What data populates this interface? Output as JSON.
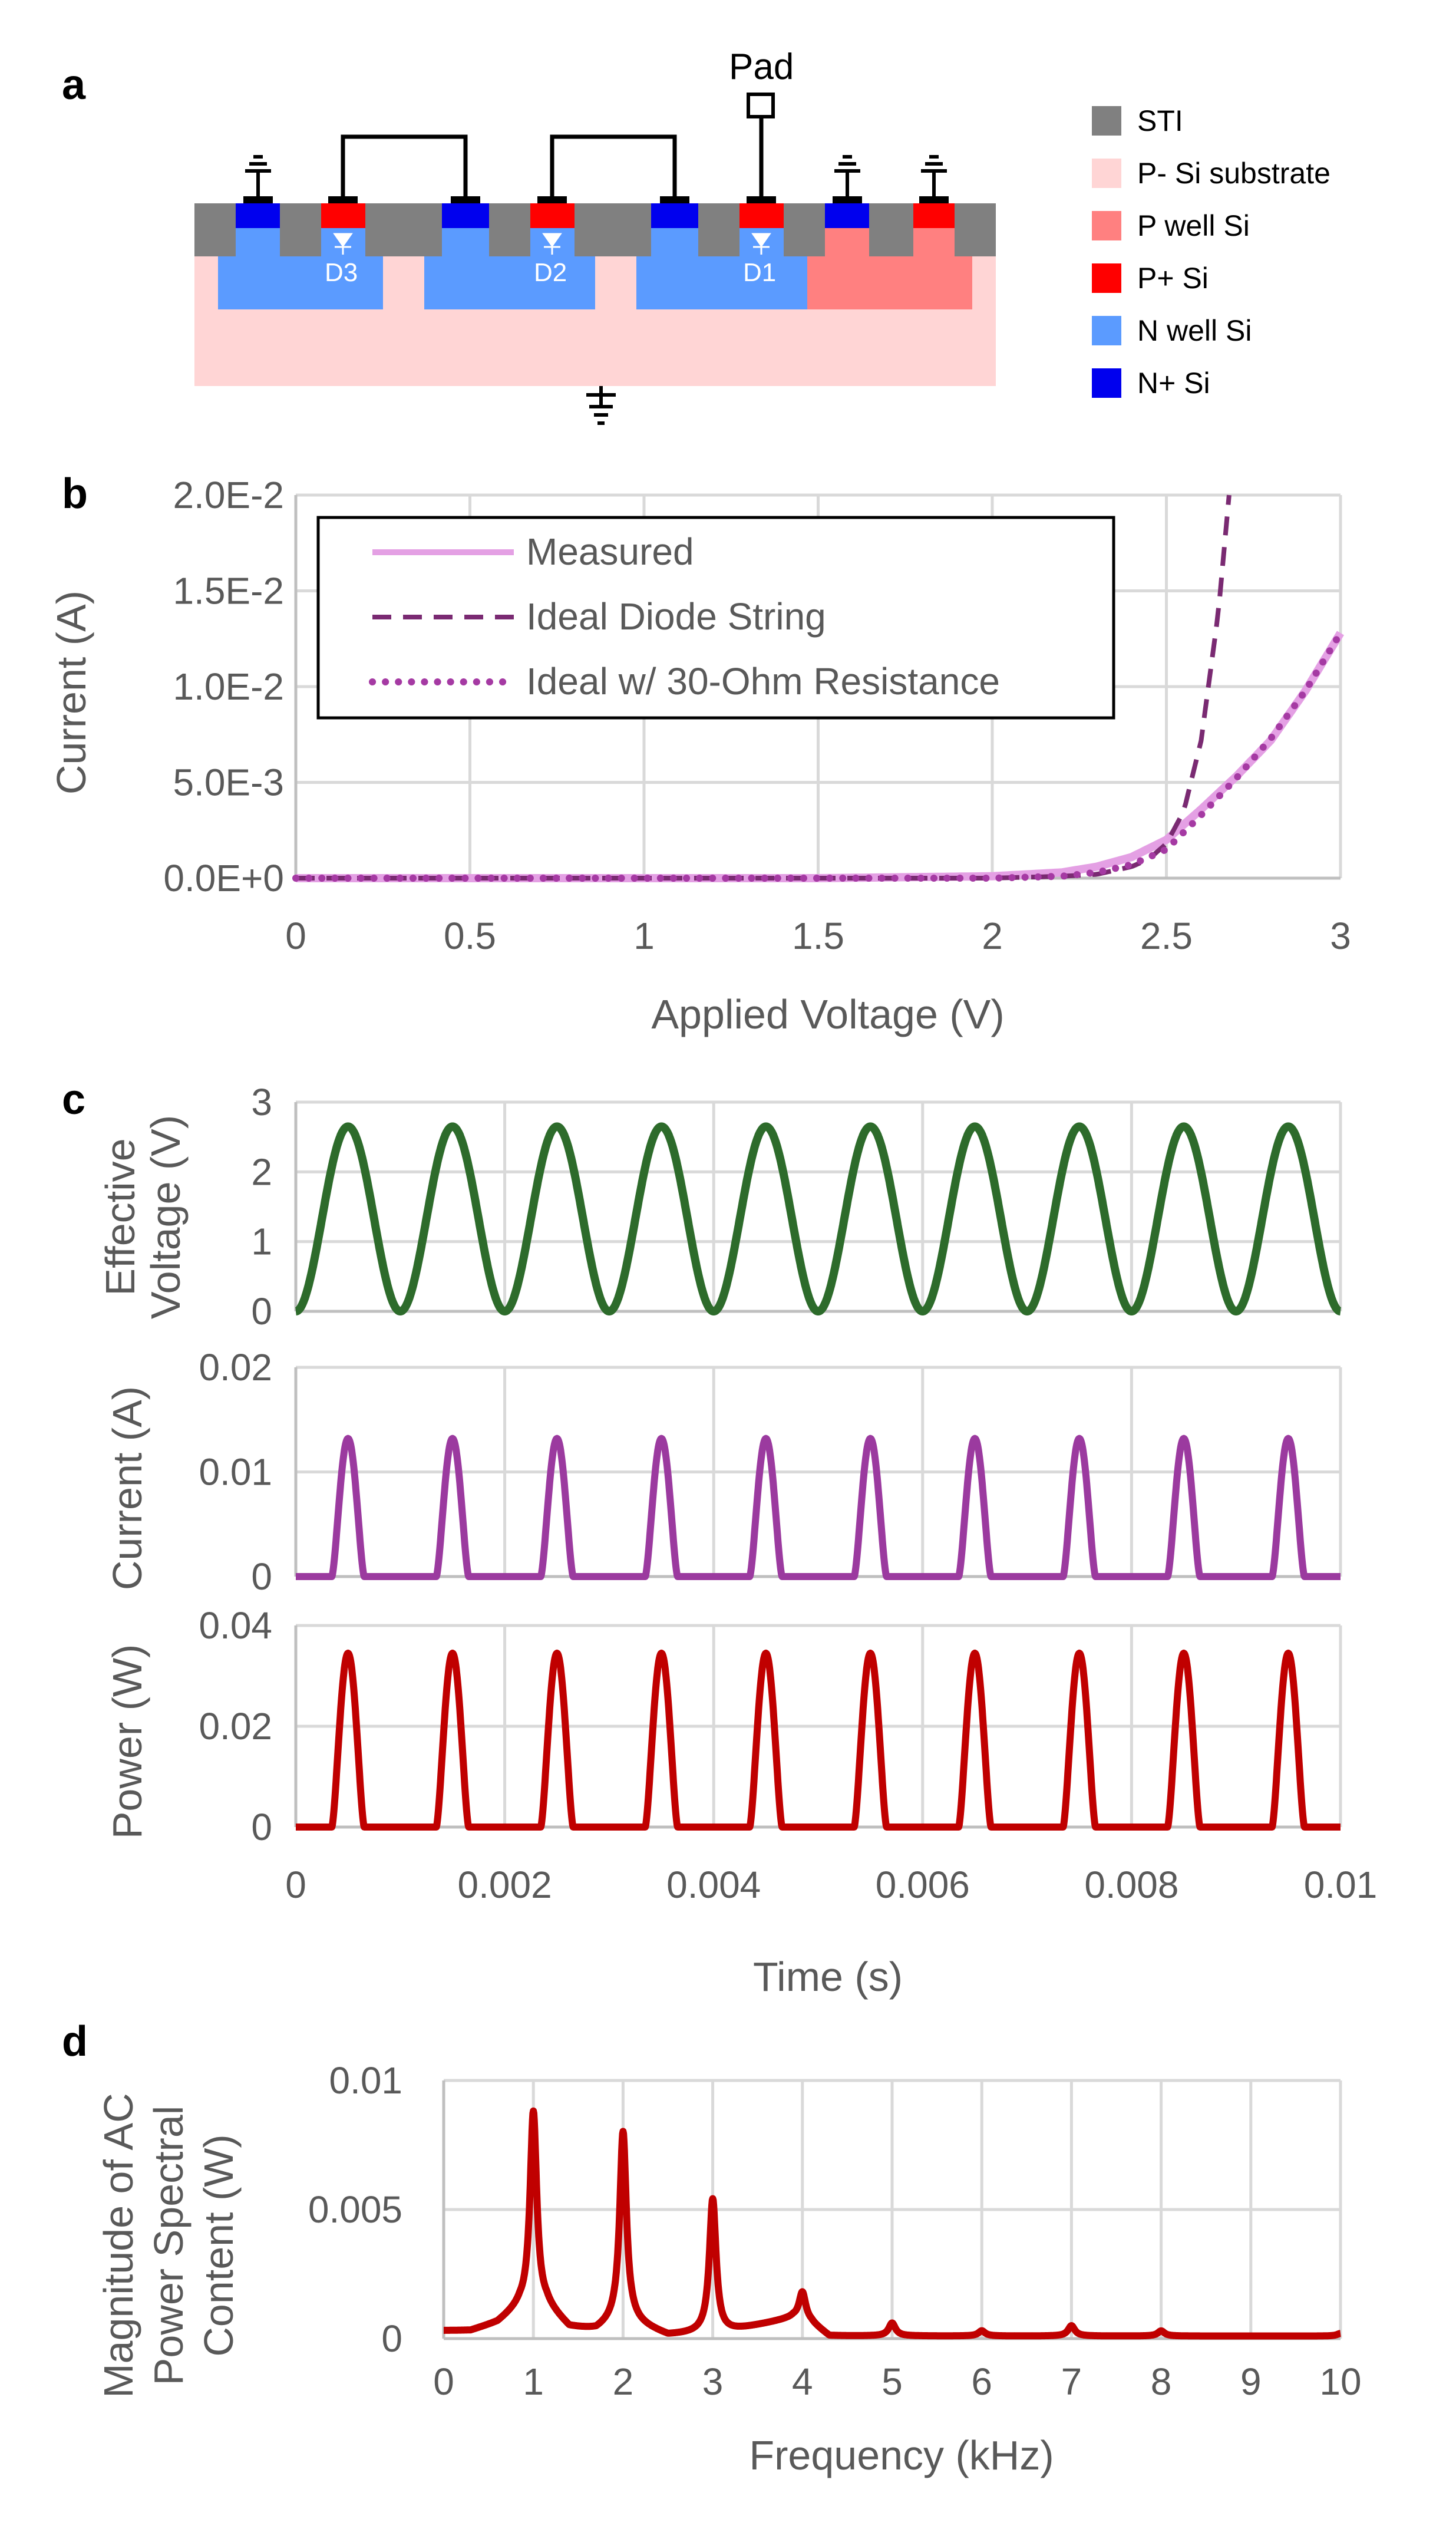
{
  "panel_labels": [
    "a",
    "b",
    "c",
    "d"
  ],
  "panel_a": {
    "pad_label": "Pad",
    "diode_labels": [
      "D3",
      "D2",
      "D1"
    ],
    "legend": [
      {
        "label": "STI",
        "color": "#808080"
      },
      {
        "label": "P- Si substrate",
        "color": "#ffd5d5"
      },
      {
        "label": "P well Si",
        "color": "#ff8080"
      },
      {
        "label": "P+ Si",
        "color": "#ff0000"
      },
      {
        "label": "N well Si",
        "color": "#5b9bff"
      },
      {
        "label": "N+ Si",
        "color": "#0000ee"
      }
    ]
  },
  "colors": {
    "measured": "#e4a0e4",
    "ideal": "#7a2a72",
    "resistance": "#a53aa3",
    "voltage": "#2d6b2b",
    "current": "#9b3a9f",
    "power": "#c00000",
    "spectrum": "#c00000"
  },
  "chart_data": [
    {
      "id": "b",
      "type": "line",
      "title": "",
      "xlabel": "Applied Voltage (V)",
      "ylabel": "Current (A)",
      "xlim": [
        0,
        3
      ],
      "ylim": [
        0,
        0.02
      ],
      "xticks": [
        0,
        0.5,
        1,
        1.5,
        2,
        2.5,
        3
      ],
      "xtick_labels": [
        "0",
        "0.5",
        "1",
        "1.5",
        "2",
        "2.5",
        "3"
      ],
      "yticks": [
        0,
        0.005,
        0.01,
        0.015,
        0.02
      ],
      "ytick_labels": [
        "0.0E+0",
        "5.0E-3",
        "1.0E-2",
        "1.5E-2",
        "2.0E-2"
      ],
      "legend_position": "top-left",
      "series": [
        {
          "name": "Measured",
          "style": "solid",
          "x": [
            0,
            1.5,
            2.0,
            2.2,
            2.3,
            2.4,
            2.5,
            2.6,
            2.7,
            2.8,
            2.9,
            3.0
          ],
          "y": [
            0,
            0,
            0.0001,
            0.0003,
            0.0006,
            0.0011,
            0.002,
            0.0036,
            0.0053,
            0.0072,
            0.0098,
            0.0128
          ]
        },
        {
          "name": "Ideal Diode String",
          "style": "dashed",
          "x": [
            0,
            2.0,
            2.2,
            2.3,
            2.4,
            2.45,
            2.5,
            2.55,
            2.6,
            2.65,
            2.68
          ],
          "y": [
            0,
            0,
            0.0001,
            0.0002,
            0.0006,
            0.001,
            0.0018,
            0.0035,
            0.0072,
            0.014,
            0.02
          ]
        },
        {
          "name": "Ideal w/ 30-Ohm Resistance",
          "style": "dotted",
          "x": [
            0,
            2.0,
            2.2,
            2.3,
            2.4,
            2.5,
            2.6,
            2.7,
            2.8,
            2.9,
            3.0
          ],
          "y": [
            0,
            0,
            0.0001,
            0.0003,
            0.0007,
            0.0015,
            0.0033,
            0.0052,
            0.0073,
            0.0098,
            0.0128
          ]
        }
      ]
    },
    {
      "id": "c1",
      "type": "line",
      "xlabel": "",
      "ylabel": [
        "Effective",
        "Voltage (V)"
      ],
      "xlim": [
        0,
        0.01
      ],
      "ylim": [
        0,
        3
      ],
      "yticks": [
        0,
        1,
        2,
        3
      ],
      "ytick_labels": [
        "0",
        "1",
        "2",
        "3"
      ],
      "series": [
        {
          "name": "Effective Voltage",
          "waveform": "raised_cosine",
          "frequency_hz": 1000,
          "peak": 2.65
        }
      ]
    },
    {
      "id": "c2",
      "type": "line",
      "xlabel": "",
      "ylabel": [
        "Current (A)"
      ],
      "xlim": [
        0,
        0.01
      ],
      "ylim": [
        0,
        0.02
      ],
      "yticks": [
        0,
        0.01,
        0.02
      ],
      "ytick_labels": [
        "0",
        "0.01",
        "0.02"
      ],
      "series": [
        {
          "name": "Current",
          "waveform": "pulse",
          "frequency_hz": 1000,
          "peak": 0.0132
        }
      ]
    },
    {
      "id": "c3",
      "type": "line",
      "xlabel": "Time (s)",
      "ylabel": [
        "Power (W)"
      ],
      "xlim": [
        0,
        0.01
      ],
      "ylim": [
        0,
        0.04
      ],
      "xticks": [
        0,
        0.002,
        0.004,
        0.006,
        0.008,
        0.01
      ],
      "xtick_labels": [
        "0",
        "0.002",
        "0.004",
        "0.006",
        "0.008",
        "0.01"
      ],
      "yticks": [
        0,
        0.02,
        0.04
      ],
      "ytick_labels": [
        "0",
        "0.02",
        "0.04"
      ],
      "series": [
        {
          "name": "Power",
          "waveform": "pulse",
          "frequency_hz": 1000,
          "peak": 0.0345
        }
      ]
    },
    {
      "id": "d",
      "type": "line",
      "xlabel": "Frequency (kHz)",
      "ylabel": [
        "Magnitude of AC",
        "Power Spectral",
        "Content (W)"
      ],
      "xlim": [
        0,
        10
      ],
      "ylim": [
        0,
        0.01
      ],
      "xticks": [
        0,
        1,
        2,
        3,
        4,
        5,
        6,
        7,
        8,
        9,
        10
      ],
      "xtick_labels": [
        "0",
        "1",
        "2",
        "3",
        "4",
        "5",
        "6",
        "7",
        "8",
        "9",
        "10"
      ],
      "yticks": [
        0,
        0.005,
        0.01
      ],
      "ytick_labels": [
        "0",
        "0.005",
        "0.01"
      ],
      "series": [
        {
          "name": "AC Power Spectrum",
          "baseline": [
            [
              0,
              0.0003
            ],
            [
              0.3,
              0.0003
            ],
            [
              0.6,
              0.0006
            ],
            [
              0.85,
              0.0012
            ],
            [
              1.15,
              0.0012
            ],
            [
              1.4,
              0.0004
            ],
            [
              1.7,
              0.0003
            ],
            [
              1.9,
              0.0006
            ],
            [
              2.1,
              0.0006
            ],
            [
              2.5,
              0.0001
            ],
            [
              2.9,
              0.0002
            ],
            [
              3.1,
              0.0002
            ],
            [
              3.5,
              0.0005
            ],
            [
              3.9,
              0.0008
            ],
            [
              4.1,
              0.0006
            ],
            [
              4.3,
              0.0001
            ],
            [
              5.0,
              0.0001
            ],
            [
              10.0,
              0.0001
            ]
          ],
          "peaks": [
            [
              1,
              0.0088
            ],
            [
              2,
              0.008
            ],
            [
              3,
              0.0054
            ],
            [
              4,
              0.0018
            ],
            [
              5,
              0.0006
            ],
            [
              6,
              0.0003
            ],
            [
              7,
              0.0005
            ],
            [
              8,
              0.0003
            ],
            [
              9,
              0.0001
            ],
            [
              10,
              0.0002
            ]
          ]
        }
      ]
    }
  ]
}
